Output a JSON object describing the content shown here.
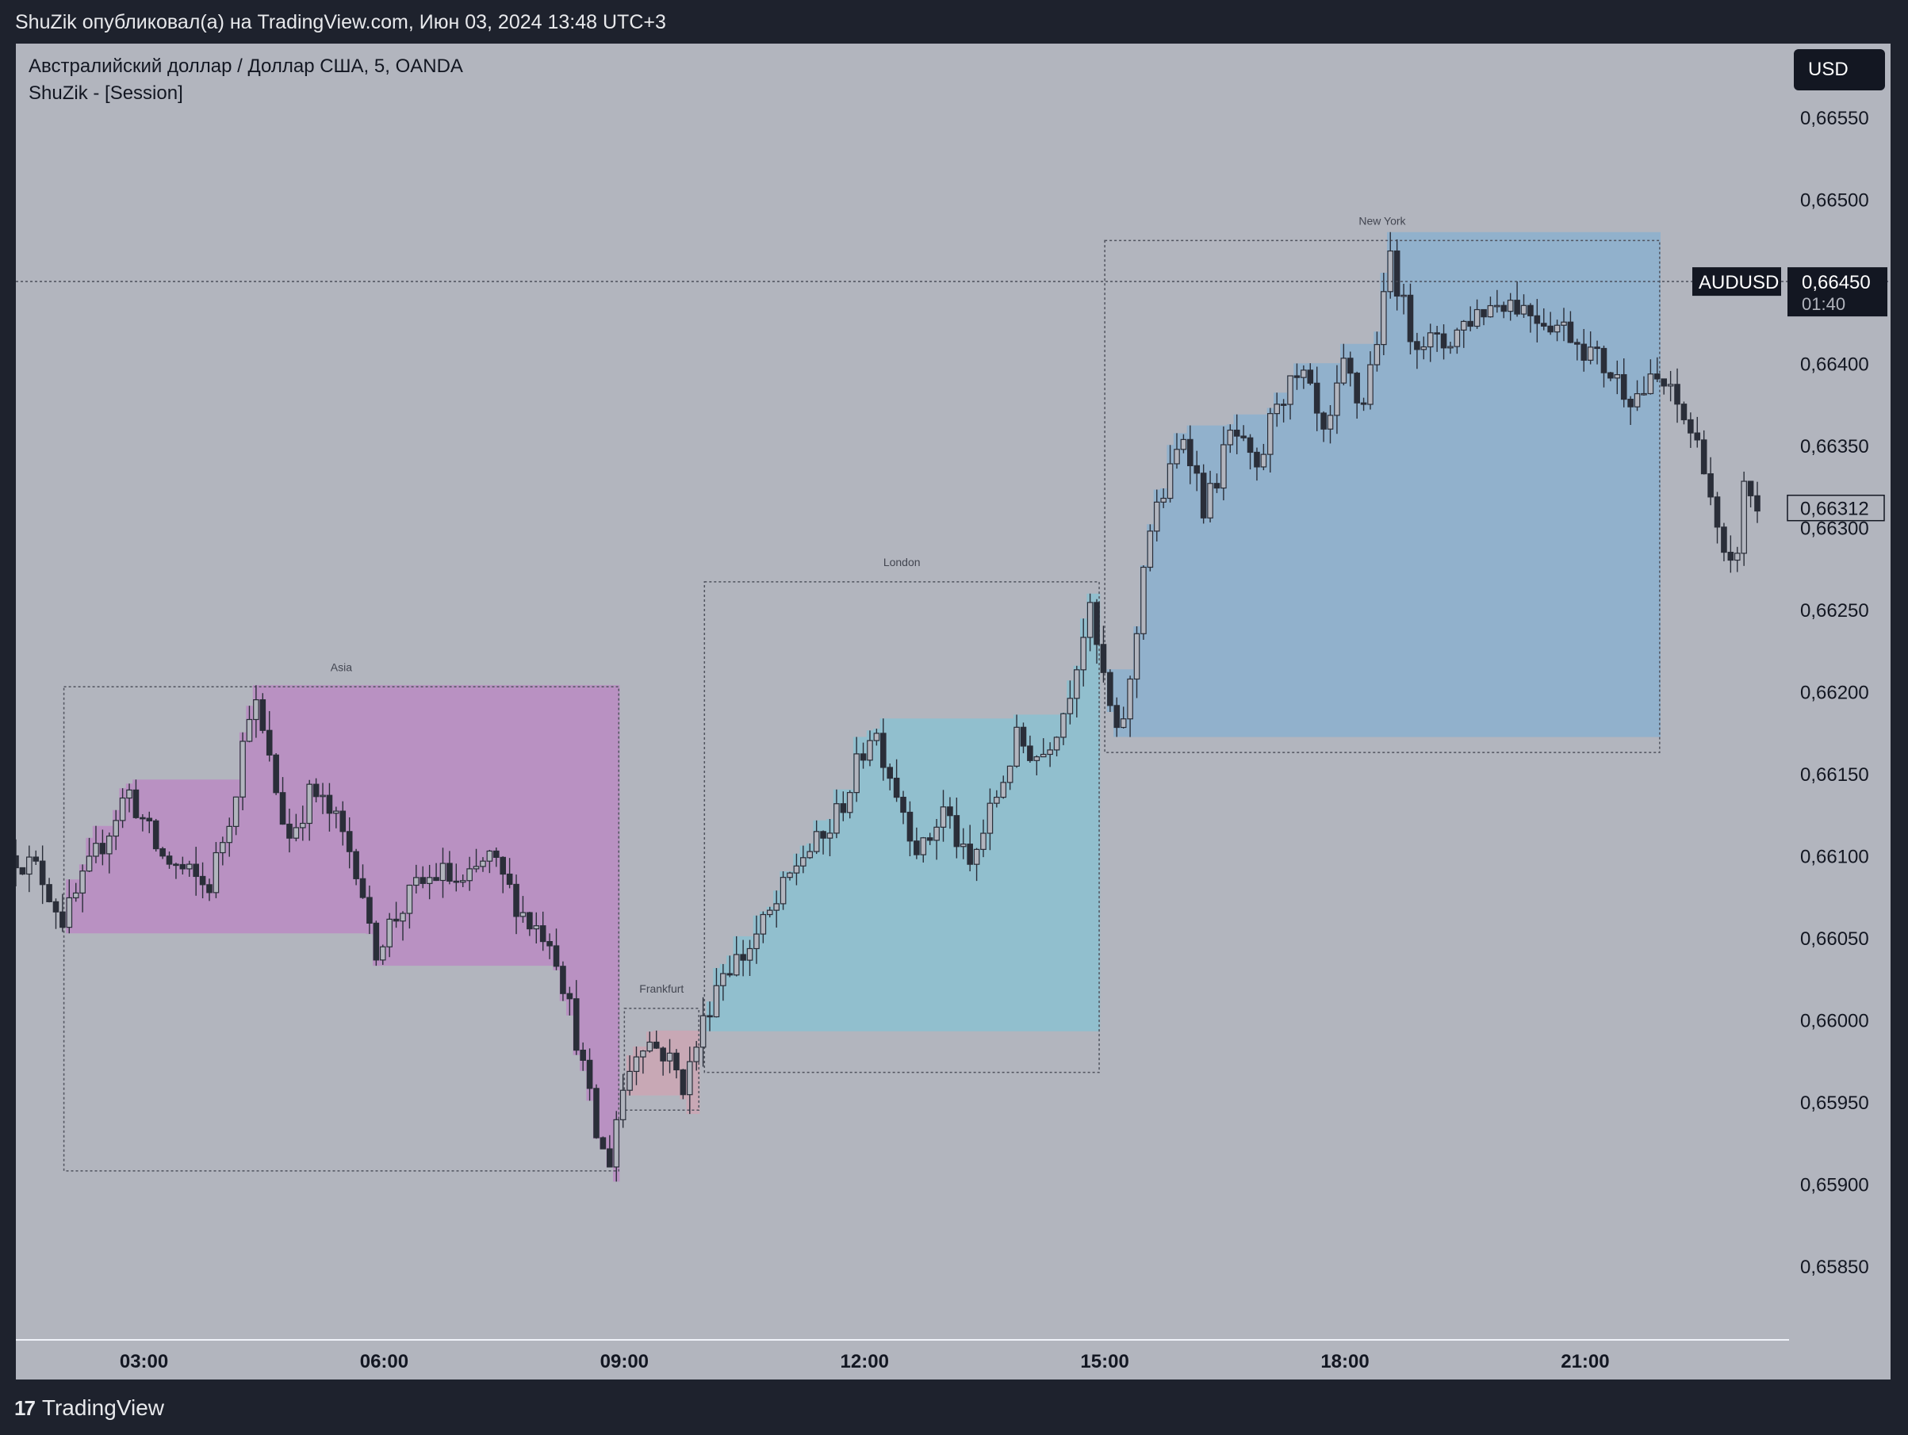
{
  "header": {
    "published_text": "ShuZik опубликовал(а) на TradingView.com, Июн 03, 2024 13:48 UTC+3"
  },
  "legend": {
    "symbol_line": "Австралийский доллар / Доллар США, 5, OANDA",
    "indicator_line": "ShuZik - [Session]"
  },
  "currency_button": "USD",
  "footer": {
    "logo_mark": "17",
    "logo_text": "TradingView"
  },
  "colors": {
    "chart_bg": "#b2b5be",
    "frame_bg": "#1e222d",
    "asia": "#b98fc2",
    "frankfurt": "#c9a8b4",
    "london": "#8fc0cf",
    "new_york": "#8fb1cc",
    "candle_up": "#b2b5be",
    "candle_down": "#2a2e39"
  },
  "chart_data": {
    "type": "candlestick",
    "symbol": "AUDUSD",
    "timeframe": "5",
    "y_axis": {
      "ylim": [
        0.65805,
        0.66595
      ],
      "ticks": [
        "0,66550",
        "0,66500",
        "0,66450",
        "0,66400",
        "0,66350",
        "0,66300",
        "0,66250",
        "0,66200",
        "0,66150",
        "0,66100",
        "0,66050",
        "0,66000",
        "0,65950",
        "0,65900",
        "0,65850"
      ],
      "tick_values": [
        0.6655,
        0.665,
        0.6645,
        0.664,
        0.6635,
        0.663,
        0.6625,
        0.662,
        0.6615,
        0.661,
        0.6605,
        0.66,
        0.6595,
        0.659,
        0.6585
      ]
    },
    "x_axis": {
      "range_hours": [
        1.4,
        23.15
      ],
      "ticks": [
        "03:00",
        "06:00",
        "09:00",
        "12:00",
        "15:00",
        "18:00",
        "21:00"
      ],
      "tick_hours": [
        3,
        6,
        9,
        12,
        15,
        18,
        21
      ]
    },
    "price_labels": {
      "last_price": "0,66450",
      "last_price_value": 0.6645,
      "countdown": "01:40",
      "symbol_tag": "AUDUSD",
      "current": "0,66312",
      "current_value": 0.66312
    },
    "sessions": [
      {
        "name": "Asia",
        "start": 2.0,
        "end": 8.93,
        "high": 0.66203,
        "low": 0.65908,
        "color": "#b98fc2"
      },
      {
        "name": "Frankfurt",
        "start": 9.0,
        "end": 9.93,
        "high": 0.66007,
        "low": 0.65945,
        "color": "#c9a8b4"
      },
      {
        "name": "London",
        "start": 10.0,
        "end": 14.93,
        "high": 0.66267,
        "low": 0.65968,
        "color": "#8fc0cf"
      },
      {
        "name": "New York",
        "start": 15.0,
        "end": 21.93,
        "high": 0.66475,
        "low": 0.66163,
        "color": "#8fb1cc"
      }
    ],
    "anchors": [
      [
        1.4,
        0.661
      ],
      [
        1.7,
        0.6609
      ],
      [
        2.0,
        0.6606
      ],
      [
        2.4,
        0.661
      ],
      [
        2.8,
        0.6614
      ],
      [
        3.2,
        0.661
      ],
      [
        3.5,
        0.6609
      ],
      [
        3.8,
        0.6608
      ],
      [
        4.1,
        0.6613
      ],
      [
        4.35,
        0.662
      ],
      [
        4.6,
        0.6615
      ],
      [
        4.8,
        0.6611
      ],
      [
        5.1,
        0.6614
      ],
      [
        5.4,
        0.6612
      ],
      [
        5.7,
        0.6609
      ],
      [
        5.85,
        0.6604
      ],
      [
        6.1,
        0.6606
      ],
      [
        6.4,
        0.6608
      ],
      [
        6.7,
        0.6609
      ],
      [
        7.0,
        0.6608
      ],
      [
        7.3,
        0.661
      ],
      [
        7.55,
        0.6608
      ],
      [
        7.8,
        0.6606
      ],
      [
        8.1,
        0.6605
      ],
      [
        8.4,
        0.6599
      ],
      [
        8.65,
        0.6593
      ],
      [
        8.8,
        0.6591
      ],
      [
        8.93,
        0.6595
      ],
      [
        9.2,
        0.6599
      ],
      [
        9.5,
        0.6598
      ],
      [
        9.75,
        0.6596
      ],
      [
        9.93,
        0.6599
      ],
      [
        10.2,
        0.6603
      ],
      [
        10.5,
        0.6604
      ],
      [
        10.9,
        0.6607
      ],
      [
        11.2,
        0.661
      ],
      [
        11.5,
        0.6611
      ],
      [
        11.8,
        0.6614
      ],
      [
        12.1,
        0.6618
      ],
      [
        12.4,
        0.6614
      ],
      [
        12.7,
        0.661
      ],
      [
        13.0,
        0.6613
      ],
      [
        13.3,
        0.6609
      ],
      [
        13.6,
        0.6613
      ],
      [
        13.9,
        0.6617
      ],
      [
        14.2,
        0.6616
      ],
      [
        14.5,
        0.6619
      ],
      [
        14.8,
        0.6625
      ],
      [
        14.93,
        0.6622
      ],
      [
        15.15,
        0.6617
      ],
      [
        15.35,
        0.6621
      ],
      [
        15.5,
        0.6629
      ],
      [
        15.8,
        0.6633
      ],
      [
        16.0,
        0.6636
      ],
      [
        16.25,
        0.6631
      ],
      [
        16.6,
        0.6636
      ],
      [
        16.9,
        0.6633
      ],
      [
        17.15,
        0.6638
      ],
      [
        17.5,
        0.6639
      ],
      [
        17.75,
        0.6635
      ],
      [
        18.0,
        0.664
      ],
      [
        18.2,
        0.6637
      ],
      [
        18.5,
        0.6644
      ],
      [
        18.55,
        0.6647
      ],
      [
        18.8,
        0.6642
      ],
      [
        19.2,
        0.6641
      ],
      [
        19.6,
        0.6643
      ],
      [
        20.0,
        0.6644
      ],
      [
        20.4,
        0.6643
      ],
      [
        20.8,
        0.6642
      ],
      [
        21.2,
        0.664
      ],
      [
        21.6,
        0.6638
      ],
      [
        21.93,
        0.6639
      ],
      [
        22.2,
        0.6637
      ],
      [
        22.5,
        0.6634
      ],
      [
        22.7,
        0.6628
      ],
      [
        22.85,
        0.6627
      ],
      [
        23.0,
        0.6633
      ],
      [
        23.15,
        0.6631
      ]
    ],
    "title": "",
    "xlabel": "",
    "ylabel": ""
  }
}
